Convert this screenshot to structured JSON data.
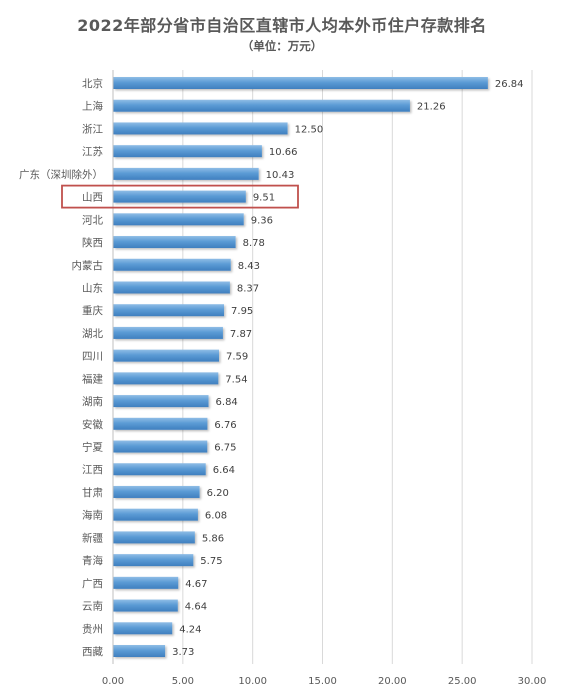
{
  "chart_data": {
    "type": "bar",
    "orientation": "horizontal",
    "title": "2022年部分省市自治区直辖市人均本外币住户存款排名",
    "subtitle": "（单位：万元）",
    "categories": [
      "北京",
      "上海",
      "浙江",
      "江苏",
      "广东（深圳除外）",
      "山西",
      "河北",
      "陕西",
      "内蒙古",
      "山东",
      "重庆",
      "湖北",
      "四川",
      "福建",
      "湖南",
      "安徽",
      "宁夏",
      "江西",
      "甘肃",
      "海南",
      "新疆",
      "青海",
      "广西",
      "云南",
      "贵州",
      "西藏"
    ],
    "values": [
      26.84,
      21.26,
      12.5,
      10.66,
      10.43,
      9.51,
      9.36,
      8.78,
      8.43,
      8.37,
      7.95,
      7.87,
      7.59,
      7.54,
      6.84,
      6.76,
      6.75,
      6.64,
      6.2,
      6.08,
      5.86,
      5.75,
      4.67,
      4.64,
      4.24,
      3.73
    ],
    "value_labels": [
      "26.84",
      "21.26",
      "12.50",
      "10.66",
      "10.43",
      "9.51",
      "9.36",
      "8.78",
      "8.43",
      "8.37",
      "7.95",
      "7.87",
      "7.59",
      "7.54",
      "6.84",
      "6.76",
      "6.75",
      "6.64",
      "6.20",
      "6.08",
      "5.86",
      "5.75",
      "4.67",
      "4.64",
      "4.24",
      "3.73"
    ],
    "xlim": [
      0,
      30
    ],
    "xticks": [
      0,
      5,
      10,
      15,
      20,
      25,
      30
    ],
    "xtick_labels": [
      "0.00",
      "5.00",
      "10.00",
      "15.00",
      "20.00",
      "25.00",
      "30.00"
    ],
    "highlighted_category": "山西",
    "grid": true,
    "legend": "none",
    "bar_color": "#5b9bd5",
    "highlight_color": "#c0504d"
  }
}
